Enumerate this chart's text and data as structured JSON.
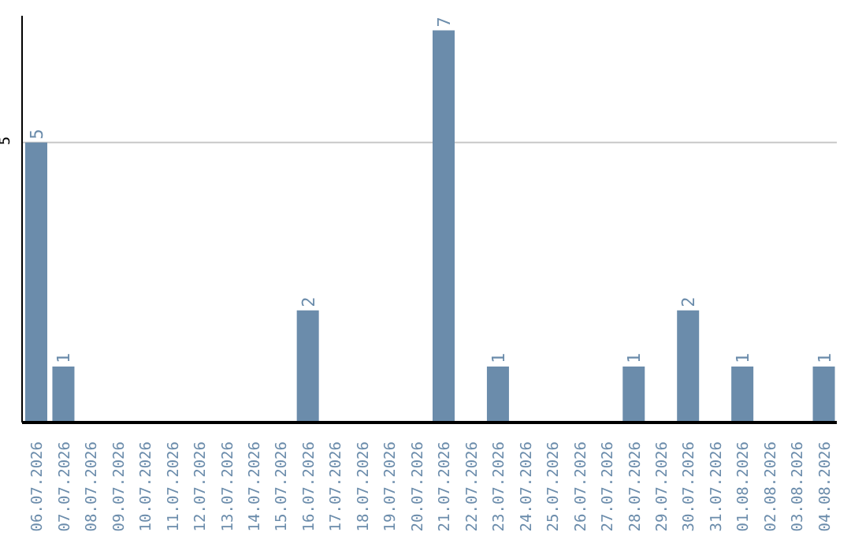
{
  "chart_data": {
    "type": "bar",
    "categories": [
      "06.07.2026",
      "07.07.2026",
      "08.07.2026",
      "09.07.2026",
      "10.07.2026",
      "11.07.2026",
      "12.07.2026",
      "13.07.2026",
      "14.07.2026",
      "15.07.2026",
      "16.07.2026",
      "17.07.2026",
      "18.07.2026",
      "19.07.2026",
      "20.07.2026",
      "21.07.2026",
      "22.07.2026",
      "23.07.2026",
      "24.07.2026",
      "25.07.2026",
      "26.07.2026",
      "27.07.2026",
      "28.07.2026",
      "29.07.2026",
      "30.07.2026",
      "31.07.2026",
      "01.08.2026",
      "02.08.2026",
      "03.08.2026",
      "04.08.2026"
    ],
    "values": [
      5,
      1,
      0,
      0,
      0,
      0,
      0,
      0,
      0,
      0,
      2,
      0,
      0,
      0,
      0,
      7,
      0,
      1,
      0,
      0,
      0,
      0,
      1,
      0,
      2,
      0,
      1,
      0,
      0,
      1
    ],
    "value_labels": [
      "5",
      "1",
      null,
      null,
      null,
      null,
      null,
      null,
      null,
      null,
      "2",
      null,
      null,
      null,
      null,
      "7",
      null,
      "1",
      null,
      null,
      null,
      null,
      "1",
      null,
      "2",
      null,
      "1",
      null,
      null,
      "1"
    ],
    "color": "#6b8cab",
    "ylim": [
      0,
      7.26
    ],
    "yticks": [
      5
    ],
    "grid": "y"
  }
}
